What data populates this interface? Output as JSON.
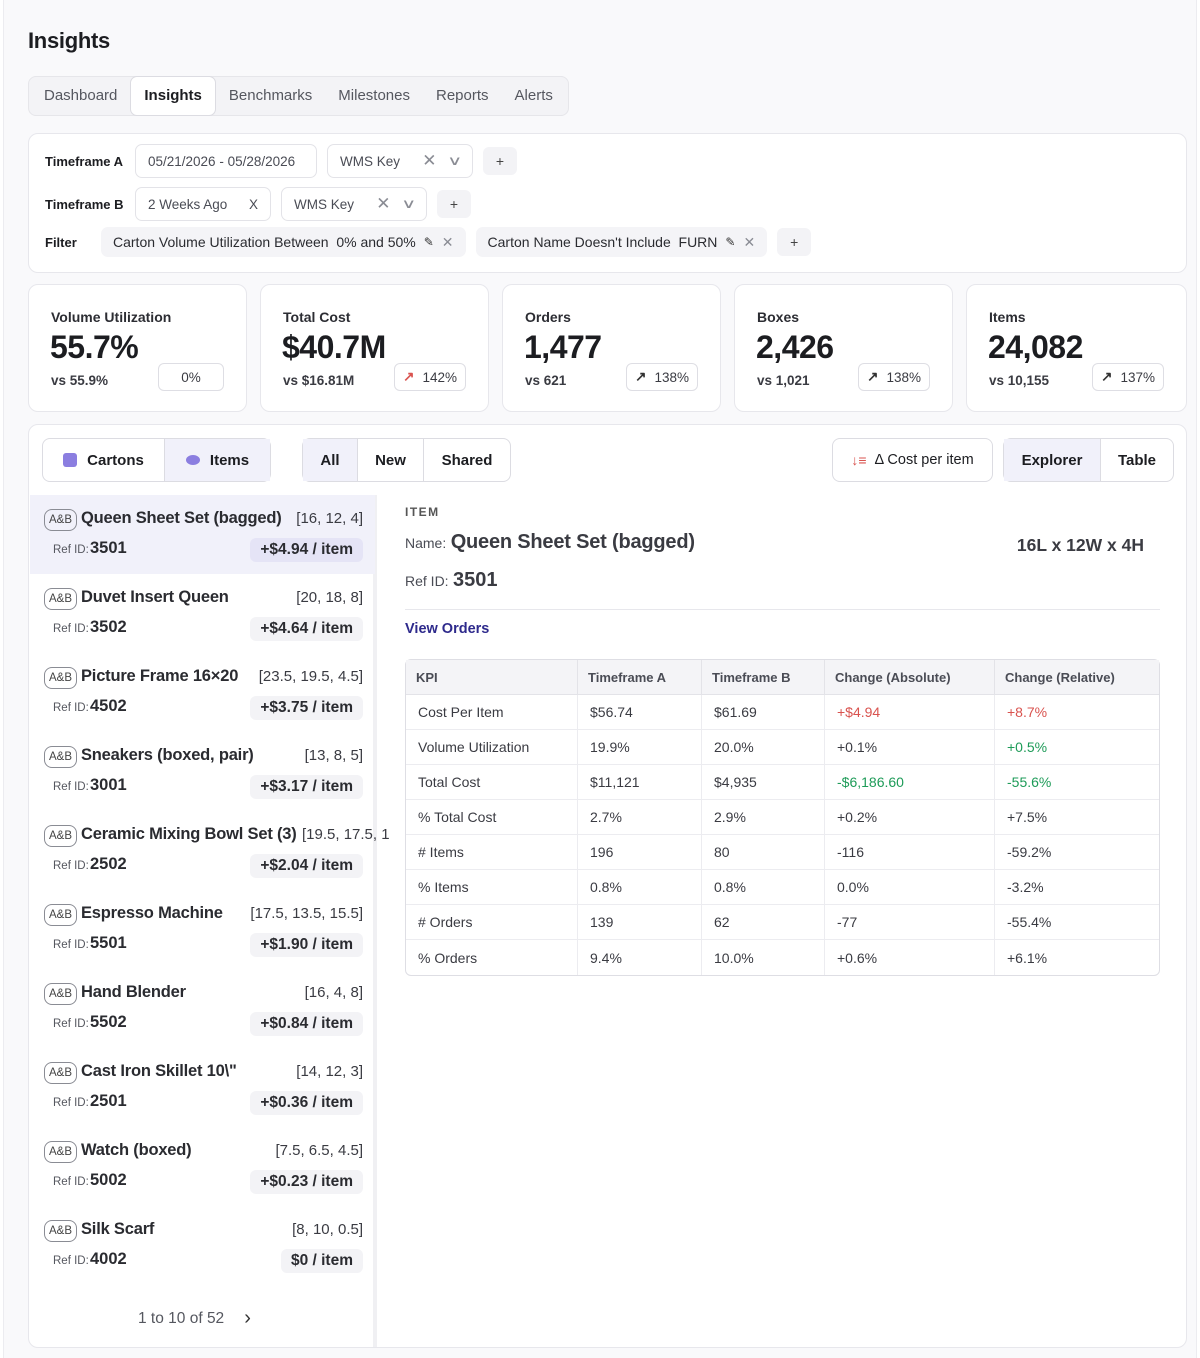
{
  "page_title": "Insights",
  "tabs": [
    {
      "label": "Dashboard",
      "active": false
    },
    {
      "label": "Insights",
      "active": true
    },
    {
      "label": "Benchmarks",
      "active": false
    },
    {
      "label": "Milestones",
      "active": false
    },
    {
      "label": "Reports",
      "active": false
    },
    {
      "label": "Alerts",
      "active": false
    }
  ],
  "filters": {
    "timeframe_a": {
      "label": "Timeframe A",
      "range": "05/21/2026 - 05/28/2026",
      "key": "WMS Key"
    },
    "timeframe_b": {
      "label": "Timeframe B",
      "range": "2 Weeks Ago",
      "range_clear": "X",
      "key": "WMS Key"
    },
    "filter_label": "Filter",
    "chips": [
      "Carton Volume Utilization Between  0% and 50%",
      "Carton Name Doesn't Include  FURN"
    ],
    "add": "+"
  },
  "kpis": [
    {
      "label": "Volume Utilization",
      "value": "55.7%",
      "vs": "vs 55.9%",
      "change": "0%",
      "arrow": ""
    },
    {
      "label": "Total Cost",
      "value": "$40.7M",
      "vs": "vs $16.81M",
      "change": "142%",
      "arrow": "↗"
    },
    {
      "label": "Orders",
      "value": "1,477",
      "vs": "vs 621",
      "change": "138%",
      "arrow": "↗"
    },
    {
      "label": "Boxes",
      "value": "2,426",
      "vs": "vs 1,021",
      "change": "138%",
      "arrow": "↗"
    },
    {
      "label": "Items",
      "value": "24,082",
      "vs": "vs 10,155",
      "change": "137%",
      "arrow": "↗"
    }
  ],
  "toolbar": {
    "entity": [
      "Cartons",
      "Items"
    ],
    "scope": [
      "All",
      "New",
      "Shared"
    ],
    "sort": "Δ Cost per item",
    "view": [
      "Explorer",
      "Table"
    ]
  },
  "items": [
    {
      "tag": "A&B",
      "name": "Queen Sheet Set (bagged)",
      "dims": "[16, 12, 4]",
      "ref_label": "Ref ID:",
      "ref": "3501",
      "cost": "+$4.94 / item"
    },
    {
      "tag": "A&B",
      "name": "Duvet Insert Queen",
      "dims": "[20, 18, 8]",
      "ref_label": "Ref ID:",
      "ref": "3502",
      "cost": "+$4.64 / item"
    },
    {
      "tag": "A&B",
      "name": "Picture Frame 16×20",
      "dims": "[23.5, 19.5, 4.5]",
      "ref_label": "Ref ID:",
      "ref": "4502",
      "cost": "+$3.75 / item"
    },
    {
      "tag": "A&B",
      "name": "Sneakers (boxed, pair)",
      "dims": "[13, 8, 5]",
      "ref_label": "Ref ID:",
      "ref": "3001",
      "cost": "+$3.17 / item"
    },
    {
      "tag": "A&B",
      "name": "Ceramic Mixing Bowl Set (3)",
      "dims": "[19.5, 17.5, 1",
      "ref_label": "Ref ID:",
      "ref": "2502",
      "cost": "+$2.04 / item"
    },
    {
      "tag": "A&B",
      "name": "Espresso Machine",
      "dims": "[17.5, 13.5, 15.5]",
      "ref_label": "Ref ID:",
      "ref": "5501",
      "cost": "+$1.90 / item"
    },
    {
      "tag": "A&B",
      "name": "Hand Blender",
      "dims": "[16, 4, 8]",
      "ref_label": "Ref ID:",
      "ref": "5502",
      "cost": "+$0.84 / item"
    },
    {
      "tag": "A&B",
      "name": "Cast Iron Skillet 10\\\"",
      "dims": "[14, 12, 3]",
      "ref_label": "Ref ID:",
      "ref": "2501",
      "cost": "+$0.36 / item"
    },
    {
      "tag": "A&B",
      "name": "Watch (boxed)",
      "dims": "[7.5, 6.5, 4.5]",
      "ref_label": "Ref ID:",
      "ref": "5002",
      "cost": "+$0.23 / item"
    },
    {
      "tag": "A&B",
      "name": "Silk Scarf",
      "dims": "[8, 10, 0.5]",
      "ref_label": "Ref ID:",
      "ref": "4002",
      "cost": "$0 / item"
    }
  ],
  "pager": {
    "text": "1 to 10 of 52",
    "next": "›"
  },
  "detail": {
    "section": "ITEM",
    "name_label": "Name:",
    "name": "Queen Sheet Set (bagged)",
    "dims": "16L x 12W x 4H",
    "ref_label": "Ref ID:",
    "ref": "3501",
    "link": "View Orders",
    "table": {
      "headers": [
        "KPI",
        "Timeframe A",
        "Timeframe B",
        "Change (Absolute)",
        "Change (Relative)"
      ],
      "rows": [
        {
          "cells": [
            "Cost Per Item",
            "$56.74",
            "$61.69",
            "+$4.94",
            "+8.7%"
          ],
          "abs": "red",
          "rel": "red"
        },
        {
          "cells": [
            "Volume Utilization",
            "19.9%",
            "20.0%",
            "+0.1%",
            "+0.5%"
          ],
          "abs": "",
          "rel": "green"
        },
        {
          "cells": [
            "Total Cost",
            "$11,121",
            "$4,935",
            "-$6,186.60",
            "-55.6%"
          ],
          "abs": "green",
          "rel": "green"
        },
        {
          "cells": [
            "% Total Cost",
            "2.7%",
            "2.9%",
            "+0.2%",
            "+7.5%"
          ],
          "abs": "",
          "rel": ""
        },
        {
          "cells": [
            "# Items",
            "196",
            "80",
            "-116",
            "-59.2%"
          ],
          "abs": "",
          "rel": ""
        },
        {
          "cells": [
            "% Items",
            "0.8%",
            "0.8%",
            "0.0%",
            "-3.2%"
          ],
          "abs": "",
          "rel": ""
        },
        {
          "cells": [
            "# Orders",
            "139",
            "62",
            "-77",
            "-55.4%"
          ],
          "abs": "",
          "rel": ""
        },
        {
          "cells": [
            "% Orders",
            "9.4%",
            "10.0%",
            "+0.6%",
            "+6.1%"
          ],
          "abs": "",
          "rel": ""
        }
      ]
    }
  },
  "colors": {
    "accent": "#2e2a8c",
    "negative": "#d9534f",
    "positive": "#1e9b58",
    "selected_bg": "#f1f1fa"
  }
}
